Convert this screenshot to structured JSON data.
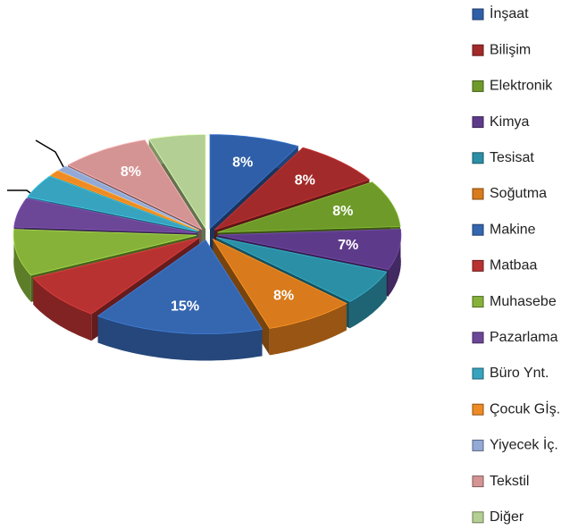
{
  "chart_data": {
    "type": "pie3d",
    "categories": [
      "İnşaat",
      "Bilişim",
      "Elektronik",
      "Kimya",
      "Tesisat",
      "Soğutma",
      "Makine",
      "Matbaa",
      "Muhasebe",
      "Pazarlama",
      "Büro Ynt.",
      "Çocuk Gİş.",
      "Yiyecek İç.",
      "Tekstil",
      "Diğer"
    ],
    "values": [
      8,
      8,
      8,
      7,
      6,
      8,
      15,
      8,
      8,
      5,
      4,
      1,
      1,
      8,
      5
    ],
    "value_labels": [
      "8%",
      "8%",
      "8%",
      "7%",
      null,
      "8%",
      "15%",
      null,
      null,
      null,
      null,
      null,
      null,
      "8%",
      null
    ],
    "colors": [
      "#2f5fa8",
      "#a32a2a",
      "#6e9a2a",
      "#5e3b8a",
      "#2b8fa6",
      "#d97a1c",
      "#3566b0",
      "#b83232",
      "#86b23a",
      "#6c4697",
      "#37a3bf",
      "#ef8a24",
      "#93a9d6",
      "#d49493",
      "#b4cf93"
    ],
    "legend": "right"
  }
}
